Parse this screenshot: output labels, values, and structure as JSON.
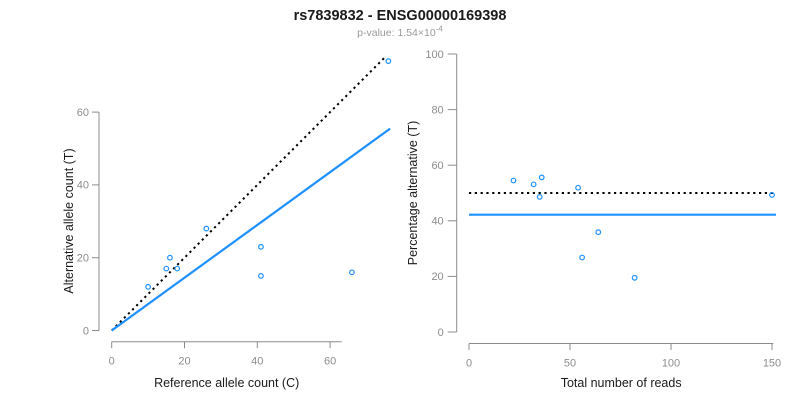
{
  "header": {
    "title": "rs7839832 - ENSG00000169398",
    "subtitle_prefix": "p-value: 1.54×10",
    "subtitle_exponent": "-4"
  },
  "colors": {
    "points": "#1E90FF",
    "fit_line": "#1E90FF",
    "reference_line": "#000000",
    "axis": "#8c8c8c",
    "tick_labels": "#8c8c8c",
    "title": "#1b1b1b",
    "subtitle": "#9a9a9a"
  },
  "chart_data": [
    {
      "id": "allele-count-scatter",
      "type": "scatter",
      "xlabel": "Reference allele count (C)",
      "ylabel": "Alternative allele count (T)",
      "xticks": [
        0,
        20,
        40,
        60
      ],
      "yticks": [
        0,
        20,
        40,
        60
      ],
      "xlim": [
        0,
        76.5
      ],
      "ylim": [
        0,
        75.5
      ],
      "marker": "open-circle",
      "points": [
        [
          10,
          12
        ],
        [
          15,
          17
        ],
        [
          16,
          20
        ],
        [
          18,
          17
        ],
        [
          26,
          28
        ],
        [
          41,
          23
        ],
        [
          41,
          15
        ],
        [
          66,
          16
        ],
        [
          76,
          74
        ]
      ],
      "lines": [
        {
          "name": "identity-line",
          "type": "slope",
          "slope": 1,
          "intercept": 0,
          "dash": "dotted",
          "color": "#000000"
        },
        {
          "name": "fitted-ratio-line",
          "type": "slope",
          "slope": 0.725,
          "intercept": 0,
          "dash": "solid",
          "color": "#1E90FF"
        }
      ]
    },
    {
      "id": "percentage-alternative-scatter",
      "type": "scatter",
      "xlabel": "Total number of reads",
      "ylabel": "Percentage alternative (T)",
      "xticks": [
        0,
        50,
        100,
        150
      ],
      "yticks": [
        0,
        20,
        40,
        60,
        80,
        100
      ],
      "xlim": [
        0,
        152
      ],
      "ylim": [
        0,
        100
      ],
      "marker": "open-circle",
      "points": [
        [
          22,
          54.5
        ],
        [
          32,
          53.1
        ],
        [
          36,
          55.6
        ],
        [
          35,
          48.6
        ],
        [
          54,
          51.9
        ],
        [
          64,
          35.9
        ],
        [
          56,
          26.8
        ],
        [
          82,
          19.5
        ],
        [
          150,
          49.3
        ]
      ],
      "lines": [
        {
          "name": "expected-50-percent-line",
          "type": "horizontal",
          "value": 50,
          "dash": "dotted",
          "color": "#000000"
        },
        {
          "name": "fitted-percentage-line",
          "type": "horizontal",
          "value": 42.2,
          "dash": "solid",
          "color": "#1E90FF"
        }
      ]
    }
  ]
}
